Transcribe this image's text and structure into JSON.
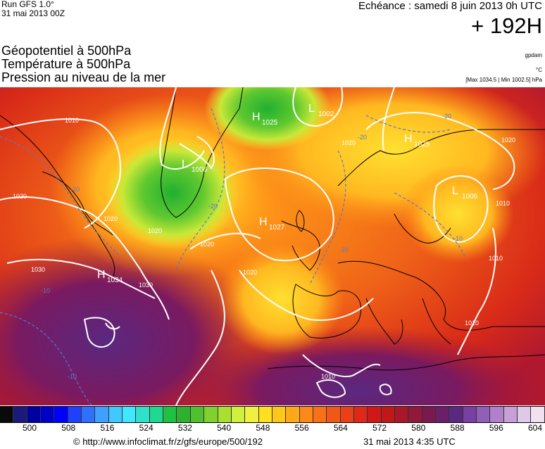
{
  "header": {
    "run": "Run GFS 1.0°",
    "run_date": "31 mai 2013 00Z",
    "echeance": "Echéance : samedi 8 juin 2013 0h UTC",
    "lead": "+ 192H",
    "params": [
      "Géopotentiel à 500hPa",
      "Température à 500hPa",
      "Pression au niveau de la mer"
    ],
    "unit_geo": "gpdam",
    "unit_temp": "°C",
    "max_min": "[Max 1034.5 | Min 1002.5] hPa"
  },
  "map": {
    "pressure_centers": [
      {
        "type": "H",
        "value": "1025",
        "place": "Greenland"
      },
      {
        "type": "L",
        "value": "1002",
        "place": "Greenland east"
      },
      {
        "type": "L",
        "value": "1006",
        "place": "Greenland west"
      },
      {
        "type": "H",
        "value": "1025",
        "place": "Scandinavia"
      },
      {
        "type": "L",
        "value": "1006",
        "place": "Russia"
      },
      {
        "type": "H",
        "value": "1027",
        "place": "North Atlantic"
      },
      {
        "type": "H",
        "value": "1034",
        "place": "Western Atlantic"
      }
    ],
    "isobar_labels": [
      "1010",
      "1020",
      "1020",
      "1020",
      "1020",
      "1020",
      "1030",
      "1030",
      "1020",
      "1020",
      "1010",
      "1010",
      "1010",
      "1010"
    ],
    "isotherm_labels": [
      "-20",
      "-20",
      "-20",
      "-10",
      "-10",
      "-20",
      "-20",
      "-10"
    ]
  },
  "colorscale": {
    "ticks": [
      "500",
      "508",
      "516",
      "524",
      "532",
      "540",
      "548",
      "556",
      "564",
      "572",
      "580",
      "588",
      "596",
      "604"
    ],
    "colors": [
      "#0a0a0a",
      "#1a1a7a",
      "#0000a0",
      "#0000c8",
      "#0000ff",
      "#2040ff",
      "#3070ff",
      "#40a0ff",
      "#40c8ff",
      "#40e8ff",
      "#30e0c8",
      "#20d890",
      "#20c040",
      "#30b030",
      "#50c030",
      "#80d030",
      "#a8e030",
      "#d0f040",
      "#f0f040",
      "#ffe020",
      "#ffc818",
      "#ffa818",
      "#ff8818",
      "#f87018",
      "#f05818",
      "#e84018",
      "#e02818",
      "#d01818",
      "#c01818",
      "#a81828",
      "#901838",
      "#7a1850",
      "#6a2068",
      "#5a2880",
      "#7840a0",
      "#9060b8",
      "#b080c8",
      "#c8a0d8",
      "#e0c8e8",
      "#f0e0f0"
    ]
  },
  "footer": {
    "credit": "© http://www.infoclimat.fr/z/gfs/europe/500/192",
    "stamp": "31 mai 2013  4:35 UTC"
  }
}
